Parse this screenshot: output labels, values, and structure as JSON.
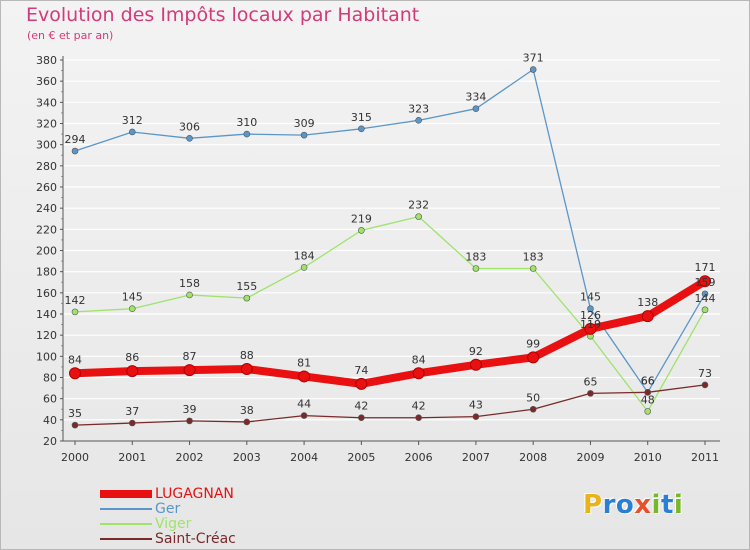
{
  "title": "Evolution des Impôts locaux par Habitant",
  "subtitle": "(en € et par an)",
  "logo_letters": [
    "P",
    "r",
    "o",
    "x",
    "i",
    "t",
    "i"
  ],
  "logo_colors": [
    "#e8b41a",
    "#2a7fd4",
    "#2a7fd4",
    "#e8502a",
    "#76b82a",
    "#2a7fd4",
    "#76b82a"
  ],
  "colors": {
    "title": "#d33a7a",
    "axis": "#555555",
    "grid": "#ffffff"
  },
  "chart_data": {
    "type": "line",
    "title": "Evolution des Impôts locaux par Habitant",
    "subtitle": "(en € et par an)",
    "xlabel": "",
    "ylabel": "",
    "categories": [
      "2000",
      "2001",
      "2002",
      "2003",
      "2004",
      "2005",
      "2006",
      "2007",
      "2008",
      "2009",
      "2010",
      "2011"
    ],
    "ylim": [
      20,
      380
    ],
    "yticks": [
      20,
      40,
      60,
      80,
      100,
      120,
      140,
      160,
      180,
      200,
      220,
      240,
      260,
      280,
      300,
      320,
      340,
      360,
      380
    ],
    "grid": true,
    "legend_position": "bottom-left",
    "series": [
      {
        "name": "Ger",
        "color": "#5b96c8",
        "values": [
          294,
          312,
          306,
          310,
          309,
          315,
          323,
          334,
          371,
          145,
          66,
          159
        ],
        "labels": [
          "294",
          "312",
          "306",
          "310",
          "309",
          "315",
          "323",
          "334",
          "371",
          "145",
          "66",
          "159"
        ],
        "thick": false
      },
      {
        "name": "Viger",
        "color": "#9ee36a",
        "values": [
          142,
          145,
          158,
          155,
          184,
          219,
          232,
          183,
          183,
          119,
          48,
          144
        ],
        "labels": [
          "142",
          "145",
          "158",
          "155",
          "184",
          "219",
          "232",
          "183",
          "183",
          "119",
          "48",
          "144"
        ],
        "thick": false
      },
      {
        "name": "Saint-Créac",
        "color": "#7a2a2a",
        "values": [
          35,
          37,
          39,
          38,
          44,
          42,
          42,
          43,
          50,
          65,
          66,
          73
        ],
        "labels": [
          "35",
          "37",
          "39",
          "38",
          "44",
          "42",
          "42",
          "43",
          "50",
          "65",
          "66",
          "73"
        ],
        "thick": false
      },
      {
        "name": "LUGAGNAN",
        "color": "#e81010",
        "values": [
          84,
          86,
          87,
          88,
          81,
          74,
          84,
          92,
          99,
          126,
          138,
          171
        ],
        "labels": [
          "84",
          "86",
          "87",
          "88",
          "81",
          "74",
          "84",
          "92",
          "99",
          "126",
          "138",
          "171"
        ],
        "thick": true
      }
    ],
    "legend": [
      {
        "name": "LUGAGNAN",
        "color": "#e81010"
      },
      {
        "name": "Ger",
        "color": "#5b96c8"
      },
      {
        "name": "Viger",
        "color": "#9ee36a"
      },
      {
        "name": "Saint-Créac",
        "color": "#7a2a2a"
      }
    ]
  }
}
